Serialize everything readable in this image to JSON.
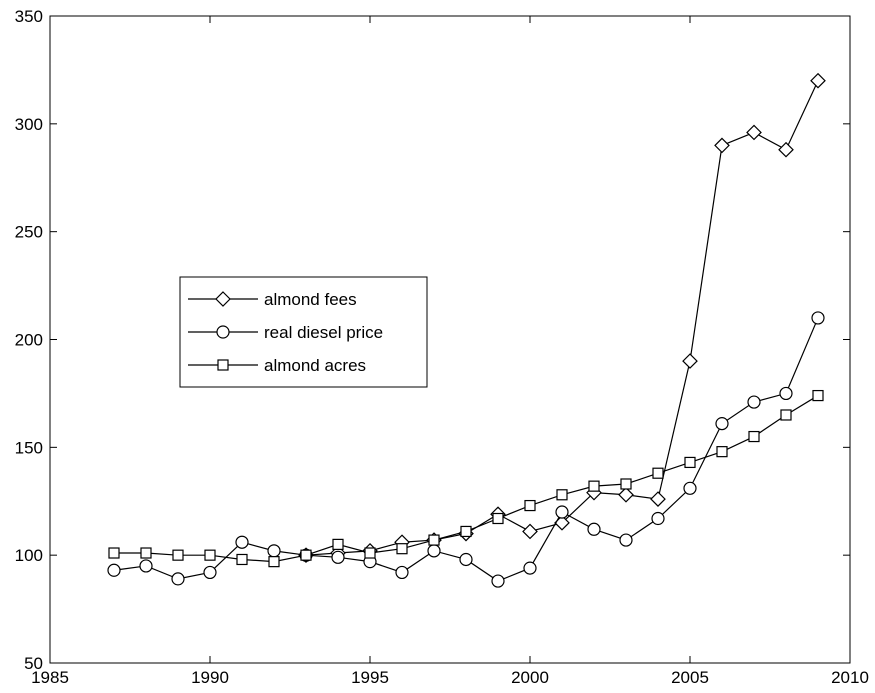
{
  "chart_data": {
    "type": "line",
    "title": "",
    "xlabel": "",
    "ylabel": "",
    "xlim": [
      1985,
      2010
    ],
    "ylim": [
      50,
      350
    ],
    "xticks": [
      1985,
      1990,
      1995,
      2000,
      2005,
      2010
    ],
    "yticks": [
      50,
      100,
      150,
      200,
      250,
      300,
      350
    ],
    "grid": false,
    "legend_position": "center-left",
    "x": [
      1987,
      1988,
      1989,
      1990,
      1991,
      1992,
      1993,
      1994,
      1995,
      1996,
      1997,
      1998,
      1999,
      2000,
      2001,
      2002,
      2003,
      2004,
      2005,
      2006,
      2007,
      2008,
      2009
    ],
    "series": [
      {
        "name": "almond fees",
        "marker": "diamond",
        "x": [
          1993,
          1994,
          1995,
          1996,
          1997,
          1998,
          1999,
          2000,
          2001,
          2002,
          2003,
          2004,
          2005,
          2006,
          2007,
          2008,
          2009
        ],
        "values": [
          100,
          101,
          102,
          106,
          107,
          110,
          119,
          111,
          115,
          129,
          128,
          126,
          190,
          290,
          296,
          288,
          320
        ]
      },
      {
        "name": "real diesel price",
        "marker": "circle",
        "x": [
          1987,
          1988,
          1989,
          1990,
          1991,
          1992,
          1993,
          1994,
          1995,
          1996,
          1997,
          1998,
          1999,
          2000,
          2001,
          2002,
          2003,
          2004,
          2005,
          2006,
          2007,
          2008,
          2009
        ],
        "values": [
          93,
          95,
          89,
          92,
          106,
          102,
          100,
          99,
          97,
          92,
          102,
          98,
          88,
          94,
          120,
          112,
          107,
          117,
          131,
          161,
          171,
          175,
          210
        ]
      },
      {
        "name": "almond acres",
        "marker": "square",
        "x": [
          1987,
          1988,
          1989,
          1990,
          1991,
          1992,
          1993,
          1994,
          1995,
          1996,
          1997,
          1998,
          1999,
          2000,
          2001,
          2002,
          2003,
          2004,
          2005,
          2006,
          2007,
          2008,
          2009
        ],
        "values": [
          101,
          101,
          100,
          100,
          98,
          97,
          100,
          105,
          101,
          103,
          107,
          111,
          117,
          123,
          128,
          132,
          133,
          138,
          143,
          148,
          155,
          165,
          174
        ]
      }
    ]
  }
}
